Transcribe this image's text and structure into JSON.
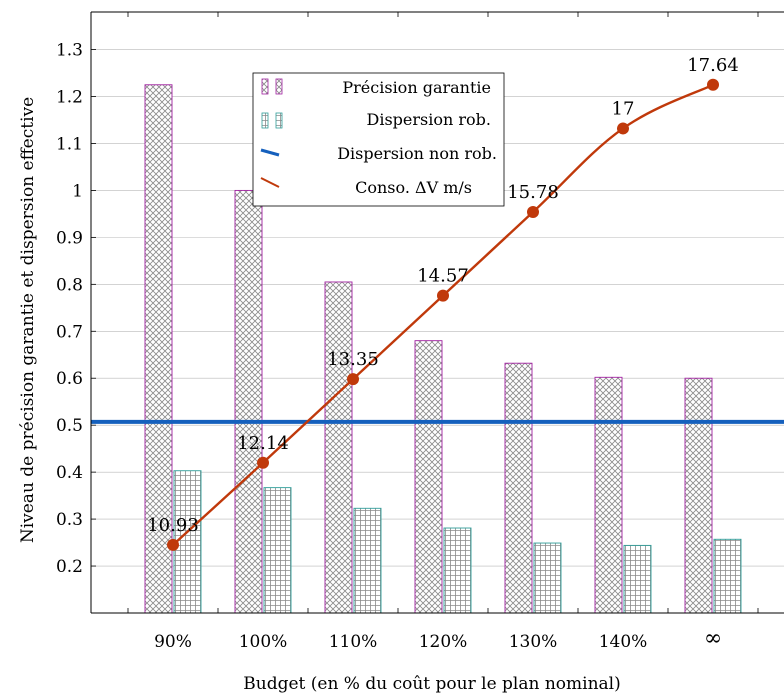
{
  "chart_data": {
    "type": "bar",
    "categories": [
      "90%",
      "100%",
      "110%",
      "120%",
      "130%",
      "140%",
      "∞"
    ],
    "xlabel": "Budget (en % du coût pour le plan nominal)",
    "ylabel": "Niveau de précision garantie et dispersion effective",
    "ylim": [
      0.1,
      1.38
    ],
    "yticks": [
      "0.2",
      "0.3",
      "0.4",
      "0.5",
      "0.6",
      "0.7",
      "0.8",
      "0.9",
      "1",
      "1.1",
      "1.2",
      "1.3"
    ],
    "grid": "horizontal",
    "legend_position": "top-center",
    "series": [
      {
        "name": "Précision garantie",
        "kind": "bar",
        "pattern": "crosshatch",
        "color": "#a020a0",
        "values": [
          1.225,
          1.0,
          0.805,
          0.68,
          0.632,
          0.602,
          0.6
        ]
      },
      {
        "name": "Dispersion rob.",
        "kind": "bar",
        "pattern": "grid",
        "color": "#2f9e9a",
        "values": [
          0.403,
          0.367,
          0.323,
          0.281,
          0.249,
          0.244,
          0.257
        ]
      },
      {
        "name": "Dispersion non rob.",
        "kind": "hline",
        "color": "#1560bd",
        "value": 0.507
      },
      {
        "name": "Conso. ΔV m/s",
        "kind": "line",
        "color": "#c0390b",
        "values": [
          0.245,
          0.42,
          0.598,
          0.776,
          0.954,
          1.132,
          1.225
        ],
        "labels": [
          "10.93",
          "12.14",
          "13.35",
          "14.57",
          "15.78",
          "17",
          "17.64"
        ]
      }
    ]
  }
}
